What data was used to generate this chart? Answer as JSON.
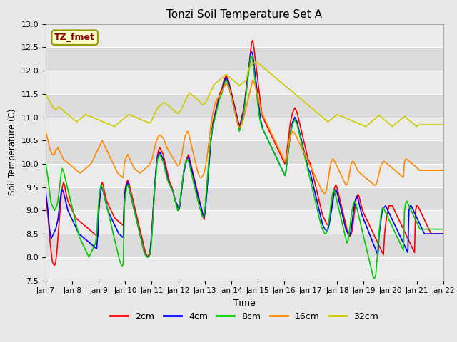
{
  "title": "Tonzi Soil Temperature Set A",
  "xlabel": "Time",
  "ylabel": "Soil Temperature (C)",
  "ylim": [
    7.5,
    13.0
  ],
  "yticks": [
    7.5,
    8.0,
    8.5,
    9.0,
    9.5,
    10.0,
    10.5,
    11.0,
    11.5,
    12.0,
    12.5,
    13.0
  ],
  "x_labels": [
    "Jan 7",
    "Jan 8",
    "Jan 9",
    "Jan 10",
    "Jan 11",
    "Jan 12",
    "Jan 13",
    "Jan 14",
    "Jan 15",
    "Jan 16",
    "Jan 17",
    "Jan 18",
    "Jan 19",
    "Jan 20",
    "Jan 21",
    "Jan 22"
  ],
  "annotation": "TZ_fmet",
  "annotation_color": "#8B0000",
  "annotation_bg": "#FFFFCC",
  "annotation_edge": "#999900",
  "outer_bg": "#E8E8E8",
  "band_light": "#EBEBEB",
  "band_dark": "#DCDCDC",
  "grid_color": "#FFFFFF",
  "series": {
    "2cm": {
      "color": "#FF0000",
      "lw": 1.2
    },
    "4cm": {
      "color": "#0000FF",
      "lw": 1.2
    },
    "8cm": {
      "color": "#00CC00",
      "lw": 1.2
    },
    "16cm": {
      "color": "#FF8800",
      "lw": 1.2
    },
    "32cm": {
      "color": "#CCCC00",
      "lw": 1.2
    }
  },
  "n_points": 360,
  "x_tick_positions": [
    0,
    24,
    48,
    72,
    96,
    120,
    144,
    168,
    192,
    216,
    240,
    264,
    288,
    312,
    336,
    360
  ],
  "data_2cm": [
    9.3,
    9.1,
    8.9,
    8.6,
    8.3,
    8.1,
    7.9,
    7.85,
    7.82,
    7.9,
    8.1,
    8.4,
    8.7,
    9.0,
    9.3,
    9.5,
    9.6,
    9.55,
    9.4,
    9.3,
    9.2,
    9.15,
    9.1,
    9.05,
    9.0,
    8.95,
    8.9,
    8.85,
    8.82,
    8.8,
    8.78,
    8.76,
    8.74,
    8.72,
    8.7,
    8.68,
    8.66,
    8.64,
    8.62,
    8.6,
    8.58,
    8.56,
    8.54,
    8.52,
    8.5,
    8.48,
    8.46,
    8.44,
    9.0,
    9.3,
    9.5,
    9.6,
    9.55,
    9.4,
    9.3,
    9.2,
    9.15,
    9.1,
    9.05,
    9.0,
    8.95,
    8.9,
    8.85,
    8.82,
    8.8,
    8.78,
    8.76,
    8.74,
    8.72,
    8.7,
    8.68,
    9.3,
    9.5,
    9.6,
    9.65,
    9.6,
    9.5,
    9.4,
    9.3,
    9.2,
    9.1,
    9.0,
    8.9,
    8.8,
    8.7,
    8.6,
    8.5,
    8.4,
    8.3,
    8.2,
    8.1,
    8.05,
    8.0,
    8.05,
    8.1,
    8.3,
    8.6,
    9.0,
    9.4,
    9.7,
    10.0,
    10.2,
    10.3,
    10.35,
    10.3,
    10.25,
    10.2,
    10.1,
    10.0,
    9.9,
    9.8,
    9.7,
    9.6,
    9.55,
    9.5,
    9.4,
    9.3,
    9.2,
    9.15,
    9.1,
    9.0,
    9.1,
    9.3,
    9.5,
    9.7,
    9.9,
    10.0,
    10.1,
    10.15,
    10.2,
    10.1,
    10.0,
    9.9,
    9.8,
    9.7,
    9.6,
    9.5,
    9.4,
    9.3,
    9.2,
    9.1,
    9.0,
    8.9,
    8.8,
    9.0,
    9.3,
    9.6,
    9.9,
    10.2,
    10.5,
    10.7,
    10.9,
    11.0,
    11.1,
    11.2,
    11.3,
    11.4,
    11.5,
    11.55,
    11.6,
    11.7,
    11.8,
    11.85,
    11.9,
    11.85,
    11.8,
    11.7,
    11.6,
    11.5,
    11.4,
    11.3,
    11.2,
    11.1,
    11.0,
    10.9,
    10.8,
    10.9,
    11.0,
    11.1,
    11.2,
    11.4,
    11.6,
    11.8,
    12.0,
    12.2,
    12.4,
    12.6,
    12.65,
    12.5,
    12.3,
    12.1,
    11.9,
    11.7,
    11.5,
    11.3,
    11.1,
    11.0,
    10.95,
    10.9,
    10.85,
    10.8,
    10.75,
    10.7,
    10.65,
    10.6,
    10.55,
    10.5,
    10.45,
    10.4,
    10.35,
    10.3,
    10.25,
    10.2,
    10.15,
    10.1,
    10.05,
    10.0,
    10.1,
    10.3,
    10.5,
    10.7,
    10.9,
    11.0,
    11.1,
    11.15,
    11.2,
    11.15,
    11.1,
    11.0,
    10.9,
    10.8,
    10.7,
    10.6,
    10.5,
    10.4,
    10.3,
    10.2,
    10.1,
    10.05,
    10.0,
    9.9,
    9.8,
    9.7,
    9.6,
    9.5,
    9.4,
    9.3,
    9.2,
    9.1,
    9.0,
    8.9,
    8.85,
    8.8,
    8.75,
    8.7,
    8.7,
    8.8,
    8.9,
    9.0,
    9.2,
    9.4,
    9.5,
    9.55,
    9.5,
    9.4,
    9.3,
    9.2,
    9.1,
    9.0,
    8.9,
    8.8,
    8.7,
    8.6,
    8.55,
    8.5,
    8.45,
    8.5,
    8.6,
    8.8,
    9.0,
    9.2,
    9.3,
    9.35,
    9.3,
    9.2,
    9.1,
    9.0,
    8.95,
    8.9,
    8.85,
    8.8,
    8.75,
    8.7,
    8.65,
    8.6,
    8.55,
    8.5,
    8.45,
    8.4,
    8.35,
    8.3,
    8.25,
    8.2,
    8.15,
    8.1,
    8.05,
    8.5,
    8.7,
    8.9,
    9.0,
    9.1,
    9.1,
    9.1,
    9.1,
    9.05,
    9.0,
    8.95,
    8.9,
    8.85,
    8.8,
    8.75,
    8.7,
    8.65,
    8.6,
    8.55,
    8.5,
    8.45,
    8.4,
    8.35,
    8.3,
    8.25,
    8.2,
    8.15,
    8.1,
    9.0,
    9.1,
    9.1,
    9.05,
    9.0,
    8.95,
    8.9,
    8.85,
    8.8,
    8.75,
    8.7,
    8.65,
    8.6,
    8.55,
    8.5
  ],
  "data_4cm": [
    9.4,
    9.2,
    9.0,
    8.7,
    8.5,
    8.4,
    8.45,
    8.5,
    8.55,
    8.6,
    8.7,
    8.8,
    9.0,
    9.2,
    9.4,
    9.45,
    9.4,
    9.3,
    9.2,
    9.1,
    9.0,
    8.95,
    8.9,
    8.85,
    8.8,
    8.75,
    8.7,
    8.65,
    8.6,
    8.55,
    8.5,
    8.48,
    8.46,
    8.44,
    8.42,
    8.4,
    8.38,
    8.36,
    8.34,
    8.32,
    8.3,
    8.28,
    8.26,
    8.24,
    8.22,
    8.2,
    8.18,
    8.5,
    9.05,
    9.3,
    9.45,
    9.5,
    9.4,
    9.3,
    9.2,
    9.1,
    9.0,
    8.95,
    8.9,
    8.85,
    8.8,
    8.75,
    8.7,
    8.65,
    8.6,
    8.55,
    8.5,
    8.48,
    8.46,
    8.44,
    8.42,
    9.25,
    9.45,
    9.55,
    9.6,
    9.5,
    9.4,
    9.3,
    9.2,
    9.1,
    9.0,
    8.9,
    8.8,
    8.7,
    8.6,
    8.5,
    8.4,
    8.3,
    8.2,
    8.1,
    8.05,
    8.02,
    8.0,
    8.02,
    8.05,
    8.3,
    8.6,
    9.0,
    9.4,
    9.7,
    10.0,
    10.15,
    10.2,
    10.25,
    10.2,
    10.15,
    10.1,
    10.0,
    9.9,
    9.8,
    9.7,
    9.6,
    9.55,
    9.5,
    9.45,
    9.4,
    9.3,
    9.2,
    9.15,
    9.1,
    9.0,
    9.1,
    9.3,
    9.5,
    9.7,
    9.85,
    9.95,
    10.05,
    10.1,
    10.15,
    10.05,
    9.95,
    9.85,
    9.75,
    9.65,
    9.55,
    9.45,
    9.35,
    9.25,
    9.15,
    9.1,
    9.0,
    8.9,
    8.85,
    9.0,
    9.25,
    9.55,
    9.85,
    10.15,
    10.45,
    10.65,
    10.85,
    10.95,
    11.05,
    11.15,
    11.25,
    11.35,
    11.45,
    11.5,
    11.55,
    11.65,
    11.75,
    11.8,
    11.85,
    11.8,
    11.75,
    11.65,
    11.55,
    11.45,
    11.35,
    11.25,
    11.15,
    11.05,
    10.95,
    10.85,
    10.75,
    10.85,
    10.95,
    11.05,
    11.15,
    11.35,
    11.55,
    11.75,
    11.95,
    12.15,
    12.35,
    12.4,
    12.35,
    12.15,
    11.95,
    11.75,
    11.55,
    11.35,
    11.15,
    10.95,
    10.85,
    10.75,
    10.7,
    10.65,
    10.6,
    10.55,
    10.5,
    10.45,
    10.4,
    10.35,
    10.3,
    10.25,
    10.2,
    10.15,
    10.1,
    10.05,
    10.0,
    9.95,
    9.9,
    9.85,
    9.8,
    9.75,
    9.85,
    10.05,
    10.25,
    10.45,
    10.65,
    10.8,
    10.9,
    10.95,
    11.0,
    10.95,
    10.9,
    10.8,
    10.7,
    10.6,
    10.5,
    10.4,
    10.3,
    10.2,
    10.1,
    10.0,
    9.9,
    9.85,
    9.8,
    9.7,
    9.6,
    9.5,
    9.4,
    9.3,
    9.2,
    9.1,
    9.0,
    8.9,
    8.8,
    8.7,
    8.65,
    8.6,
    8.58,
    8.56,
    8.6,
    8.7,
    8.85,
    9.0,
    9.15,
    9.3,
    9.4,
    9.45,
    9.4,
    9.3,
    9.2,
    9.1,
    9.0,
    8.9,
    8.8,
    8.7,
    8.6,
    8.55,
    8.5,
    8.45,
    8.5,
    8.6,
    8.8,
    9.0,
    9.15,
    9.25,
    9.3,
    9.25,
    9.15,
    9.05,
    8.95,
    8.88,
    8.82,
    8.76,
    8.7,
    8.64,
    8.58,
    8.52,
    8.46,
    8.4,
    8.34,
    8.28,
    8.22,
    8.16,
    8.1,
    8.05,
    8.45,
    8.65,
    8.85,
    9.0,
    9.05,
    9.08,
    9.1,
    9.05,
    9.0,
    8.95,
    8.9,
    8.85,
    8.8,
    8.75,
    8.7,
    8.65,
    8.6,
    8.55,
    8.5,
    8.45,
    8.4,
    8.35,
    8.3,
    8.25,
    8.2,
    8.15,
    8.1,
    9.0,
    9.1,
    9.1,
    9.05,
    9.0,
    8.95,
    8.9,
    8.85,
    8.8,
    8.75,
    8.7,
    8.65,
    8.6,
    8.55,
    8.5
  ],
  "data_8cm": [
    10.0,
    9.85,
    9.7,
    9.5,
    9.3,
    9.15,
    9.1,
    9.05,
    9.0,
    9.05,
    9.1,
    9.2,
    9.4,
    9.6,
    9.8,
    9.9,
    9.85,
    9.75,
    9.65,
    9.55,
    9.45,
    9.35,
    9.25,
    9.15,
    9.05,
    8.95,
    8.85,
    8.75,
    8.65,
    8.55,
    8.45,
    8.4,
    8.35,
    8.3,
    8.25,
    8.2,
    8.15,
    8.1,
    8.05,
    8.0,
    8.05,
    8.1,
    8.15,
    8.2,
    8.25,
    8.3,
    8.5,
    8.9,
    9.2,
    9.45,
    9.55,
    9.5,
    9.4,
    9.3,
    9.2,
    9.1,
    9.0,
    8.9,
    8.8,
    8.7,
    8.6,
    8.5,
    8.4,
    8.3,
    8.2,
    8.1,
    8.0,
    7.9,
    7.85,
    7.8,
    7.85,
    9.1,
    9.3,
    9.5,
    9.55,
    9.5,
    9.4,
    9.3,
    9.2,
    9.1,
    9.0,
    8.9,
    8.8,
    8.7,
    8.6,
    8.5,
    8.4,
    8.3,
    8.2,
    8.1,
    8.05,
    8.02,
    8.0,
    8.02,
    8.05,
    8.2,
    8.5,
    8.9,
    9.3,
    9.6,
    9.9,
    10.1,
    10.15,
    10.2,
    10.15,
    10.1,
    10.05,
    9.95,
    9.85,
    9.75,
    9.65,
    9.6,
    9.55,
    9.5,
    9.45,
    9.4,
    9.3,
    9.2,
    9.1,
    9.0,
    9.05,
    9.15,
    9.35,
    9.55,
    9.75,
    9.9,
    10.0,
    10.05,
    10.1,
    10.05,
    9.95,
    9.85,
    9.75,
    9.65,
    9.55,
    9.45,
    9.35,
    9.25,
    9.15,
    9.05,
    9.0,
    8.9,
    8.85,
    8.9,
    9.1,
    9.4,
    9.7,
    10.0,
    10.3,
    10.5,
    10.7,
    10.8,
    10.9,
    11.0,
    11.1,
    11.2,
    11.3,
    11.4,
    11.45,
    11.5,
    11.6,
    11.7,
    11.75,
    11.8,
    11.75,
    11.7,
    11.6,
    11.5,
    11.4,
    11.3,
    11.2,
    11.1,
    11.0,
    10.9,
    10.8,
    10.7,
    10.8,
    10.9,
    11.0,
    11.1,
    11.3,
    11.5,
    11.7,
    11.9,
    12.1,
    12.3,
    12.3,
    12.2,
    12.0,
    11.8,
    11.6,
    11.4,
    11.2,
    11.0,
    10.9,
    10.8,
    10.75,
    10.7,
    10.65,
    10.6,
    10.55,
    10.5,
    10.45,
    10.4,
    10.35,
    10.3,
    10.25,
    10.2,
    10.15,
    10.1,
    10.05,
    10.0,
    9.95,
    9.9,
    9.85,
    9.8,
    9.75,
    9.85,
    10.05,
    10.25,
    10.45,
    10.65,
    10.75,
    10.85,
    10.9,
    10.95,
    10.9,
    10.85,
    10.75,
    10.65,
    10.55,
    10.45,
    10.35,
    10.25,
    10.15,
    10.05,
    9.95,
    9.85,
    9.75,
    9.65,
    9.55,
    9.45,
    9.35,
    9.25,
    9.15,
    9.05,
    8.95,
    8.85,
    8.75,
    8.65,
    8.6,
    8.55,
    8.5,
    8.5,
    8.55,
    8.65,
    8.8,
    9.0,
    9.2,
    9.35,
    9.45,
    9.4,
    9.3,
    9.2,
    9.1,
    9.0,
    8.9,
    8.8,
    8.7,
    8.6,
    8.5,
    8.4,
    8.3,
    8.35,
    8.5,
    8.7,
    8.9,
    9.05,
    9.15,
    9.2,
    9.15,
    9.05,
    8.95,
    8.85,
    8.75,
    8.65,
    8.55,
    8.45,
    8.35,
    8.25,
    8.15,
    8.05,
    7.95,
    7.85,
    7.75,
    7.65,
    7.55,
    7.55,
    7.6,
    7.9,
    8.2,
    8.5,
    8.75,
    8.95,
    9.05,
    9.05,
    9.0,
    8.95,
    8.9,
    8.85,
    8.8,
    8.75,
    8.7,
    8.65,
    8.6,
    8.55,
    8.5,
    8.45,
    8.4,
    8.35,
    8.3,
    8.25,
    8.2,
    8.15,
    9.0,
    9.15,
    9.2,
    9.15,
    9.1,
    9.05,
    9.0,
    8.95,
    8.9,
    8.85,
    8.8,
    8.75,
    8.7,
    8.65,
    8.6
  ],
  "data_16cm": [
    10.7,
    10.6,
    10.5,
    10.4,
    10.3,
    10.25,
    10.2,
    10.2,
    10.2,
    10.3,
    10.3,
    10.35,
    10.3,
    10.25,
    10.2,
    10.15,
    10.1,
    10.08,
    10.06,
    10.04,
    10.02,
    10.0,
    9.98,
    9.96,
    9.94,
    9.92,
    9.9,
    9.88,
    9.86,
    9.84,
    9.82,
    9.8,
    9.82,
    9.84,
    9.86,
    9.88,
    9.9,
    9.92,
    9.94,
    9.96,
    9.98,
    10.0,
    10.05,
    10.1,
    10.15,
    10.2,
    10.25,
    10.3,
    10.35,
    10.4,
    10.45,
    10.5,
    10.45,
    10.4,
    10.35,
    10.3,
    10.25,
    10.2,
    10.15,
    10.1,
    10.05,
    10.0,
    9.95,
    9.9,
    9.85,
    9.8,
    9.78,
    9.76,
    9.74,
    9.72,
    9.7,
    10.0,
    10.1,
    10.15,
    10.2,
    10.15,
    10.1,
    10.05,
    10.0,
    9.95,
    9.9,
    9.88,
    9.86,
    9.84,
    9.82,
    9.8,
    9.82,
    9.84,
    9.86,
    9.88,
    9.9,
    9.92,
    9.94,
    9.96,
    10.0,
    10.05,
    10.1,
    10.2,
    10.3,
    10.4,
    10.5,
    10.55,
    10.6,
    10.62,
    10.6,
    10.58,
    10.56,
    10.5,
    10.44,
    10.38,
    10.32,
    10.28,
    10.24,
    10.2,
    10.16,
    10.12,
    10.08,
    10.04,
    10.0,
    9.96,
    9.98,
    10.0,
    10.1,
    10.2,
    10.35,
    10.5,
    10.6,
    10.65,
    10.7,
    10.65,
    10.55,
    10.45,
    10.35,
    10.25,
    10.15,
    10.05,
    9.95,
    9.85,
    9.78,
    9.72,
    9.7,
    9.72,
    9.75,
    9.8,
    9.9,
    10.05,
    10.2,
    10.4,
    10.6,
    10.8,
    10.95,
    11.1,
    11.2,
    11.3,
    11.35,
    11.4,
    11.42,
    11.45,
    11.5,
    11.55,
    11.6,
    11.65,
    11.7,
    11.72,
    11.7,
    11.65,
    11.6,
    11.5,
    11.4,
    11.3,
    11.2,
    11.1,
    11.0,
    10.9,
    10.82,
    10.78,
    10.8,
    10.85,
    10.9,
    11.0,
    11.1,
    11.2,
    11.3,
    11.4,
    11.5,
    11.6,
    11.7,
    11.8,
    11.75,
    11.7,
    11.6,
    11.5,
    11.4,
    11.3,
    11.2,
    11.1,
    11.05,
    11.0,
    10.95,
    10.9,
    10.85,
    10.8,
    10.75,
    10.7,
    10.65,
    10.6,
    10.55,
    10.5,
    10.45,
    10.4,
    10.35,
    10.3,
    10.25,
    10.2,
    10.15,
    10.1,
    10.05,
    10.1,
    10.2,
    10.35,
    10.5,
    10.6,
    10.65,
    10.7,
    10.68,
    10.65,
    10.6,
    10.55,
    10.5,
    10.45,
    10.4,
    10.35,
    10.3,
    10.25,
    10.2,
    10.15,
    10.1,
    10.05,
    10.0,
    9.95,
    9.9,
    9.85,
    9.8,
    9.75,
    9.7,
    9.65,
    9.6,
    9.55,
    9.5,
    9.45,
    9.4,
    9.38,
    9.36,
    9.4,
    9.5,
    9.65,
    9.8,
    9.95,
    10.05,
    10.1,
    10.1,
    10.05,
    10.0,
    9.95,
    9.9,
    9.85,
    9.8,
    9.75,
    9.7,
    9.65,
    9.6,
    9.55,
    9.55,
    9.6,
    9.75,
    9.9,
    10.0,
    10.05,
    10.05,
    10.0,
    9.95,
    9.9,
    9.85,
    9.82,
    9.8,
    9.78,
    9.76,
    9.74,
    9.72,
    9.7,
    9.68,
    9.66,
    9.64,
    9.62,
    9.6,
    9.58,
    9.56,
    9.54,
    9.55,
    9.6,
    9.7,
    9.8,
    9.9,
    9.98,
    10.02,
    10.05,
    10.05,
    10.03,
    10.01,
    9.99,
    9.97,
    9.95,
    9.93,
    9.91,
    9.89,
    9.87,
    9.85,
    9.83,
    9.81,
    9.79,
    9.77,
    9.75,
    9.73,
    9.71,
    10.05,
    10.1,
    10.1,
    10.08,
    10.06,
    10.04,
    10.02,
    10.0,
    9.98,
    9.96,
    9.94,
    9.92,
    9.9,
    9.88,
    9.86
  ],
  "data_32cm": [
    11.48,
    11.44,
    11.4,
    11.36,
    11.32,
    11.28,
    11.24,
    11.2,
    11.18,
    11.16,
    11.18,
    11.2,
    11.22,
    11.2,
    11.18,
    11.16,
    11.14,
    11.12,
    11.1,
    11.08,
    11.06,
    11.04,
    11.02,
    11.0,
    10.98,
    10.96,
    10.94,
    10.92,
    10.9,
    10.92,
    10.94,
    10.96,
    10.98,
    11.0,
    11.02,
    11.04,
    11.06,
    11.05,
    11.04,
    11.03,
    11.02,
    11.01,
    11.0,
    10.99,
    10.98,
    10.97,
    10.96,
    10.95,
    10.94,
    10.93,
    10.92,
    10.91,
    10.9,
    10.89,
    10.88,
    10.87,
    10.86,
    10.85,
    10.84,
    10.83,
    10.82,
    10.81,
    10.8,
    10.82,
    10.84,
    10.86,
    10.88,
    10.9,
    10.92,
    10.94,
    10.96,
    10.98,
    11.0,
    11.02,
    11.04,
    11.06,
    11.05,
    11.04,
    11.03,
    11.02,
    11.01,
    11.0,
    10.99,
    10.98,
    10.97,
    10.96,
    10.95,
    10.94,
    10.93,
    10.92,
    10.91,
    10.9,
    10.89,
    10.88,
    10.87,
    10.9,
    10.95,
    11.0,
    11.05,
    11.1,
    11.15,
    11.2,
    11.22,
    11.24,
    11.26,
    11.28,
    11.3,
    11.32,
    11.3,
    11.28,
    11.26,
    11.24,
    11.22,
    11.2,
    11.18,
    11.16,
    11.14,
    11.12,
    11.1,
    11.08,
    11.1,
    11.12,
    11.15,
    11.2,
    11.25,
    11.3,
    11.35,
    11.4,
    11.45,
    11.5,
    11.52,
    11.5,
    11.48,
    11.46,
    11.44,
    11.42,
    11.4,
    11.38,
    11.36,
    11.34,
    11.3,
    11.28,
    11.26,
    11.28,
    11.3,
    11.35,
    11.4,
    11.45,
    11.5,
    11.55,
    11.6,
    11.65,
    11.7,
    11.72,
    11.74,
    11.76,
    11.78,
    11.8,
    11.82,
    11.84,
    11.86,
    11.88,
    11.9,
    11.92,
    11.9,
    11.88,
    11.86,
    11.84,
    11.82,
    11.8,
    11.78,
    11.76,
    11.74,
    11.72,
    11.7,
    11.68,
    11.7,
    11.72,
    11.74,
    11.76,
    11.78,
    11.8,
    11.9,
    12.0,
    12.05,
    12.1,
    12.12,
    12.14,
    12.16,
    12.18,
    12.2,
    12.18,
    12.16,
    12.14,
    12.12,
    12.1,
    12.08,
    12.06,
    12.04,
    12.02,
    12.0,
    11.98,
    11.96,
    11.94,
    11.92,
    11.9,
    11.88,
    11.86,
    11.84,
    11.82,
    11.8,
    11.78,
    11.76,
    11.74,
    11.72,
    11.7,
    11.68,
    11.66,
    11.64,
    11.62,
    11.6,
    11.58,
    11.56,
    11.54,
    11.52,
    11.5,
    11.48,
    11.46,
    11.44,
    11.42,
    11.4,
    11.38,
    11.36,
    11.34,
    11.32,
    11.3,
    11.28,
    11.26,
    11.24,
    11.22,
    11.2,
    11.18,
    11.16,
    11.14,
    11.12,
    11.1,
    11.08,
    11.06,
    11.04,
    11.02,
    11.0,
    10.98,
    10.96,
    10.94,
    10.92,
    10.9,
    10.92,
    10.94,
    10.96,
    10.98,
    11.0,
    11.02,
    11.04,
    11.06,
    11.05,
    11.04,
    11.03,
    11.02,
    11.01,
    11.0,
    10.99,
    10.98,
    10.97,
    10.96,
    10.95,
    10.94,
    10.93,
    10.92,
    10.91,
    10.9,
    10.89,
    10.88,
    10.87,
    10.86,
    10.85,
    10.84,
    10.83,
    10.82,
    10.81,
    10.8,
    10.82,
    10.84,
    10.86,
    10.88,
    10.9,
    10.92,
    10.94,
    10.96,
    10.98,
    11.0,
    11.02,
    11.04,
    11.02,
    11.0,
    10.98,
    10.96,
    10.94,
    10.92,
    10.9,
    10.88,
    10.86,
    10.84,
    10.82,
    10.8,
    10.82,
    10.84,
    10.86,
    10.88,
    10.9,
    10.92,
    10.94,
    10.96,
    10.98,
    11.0,
    11.02,
    11.0,
    10.98,
    10.96,
    10.94,
    10.92,
    10.9,
    10.88,
    10.86,
    10.84,
    10.82,
    10.8,
    10.82,
    10.84
  ]
}
